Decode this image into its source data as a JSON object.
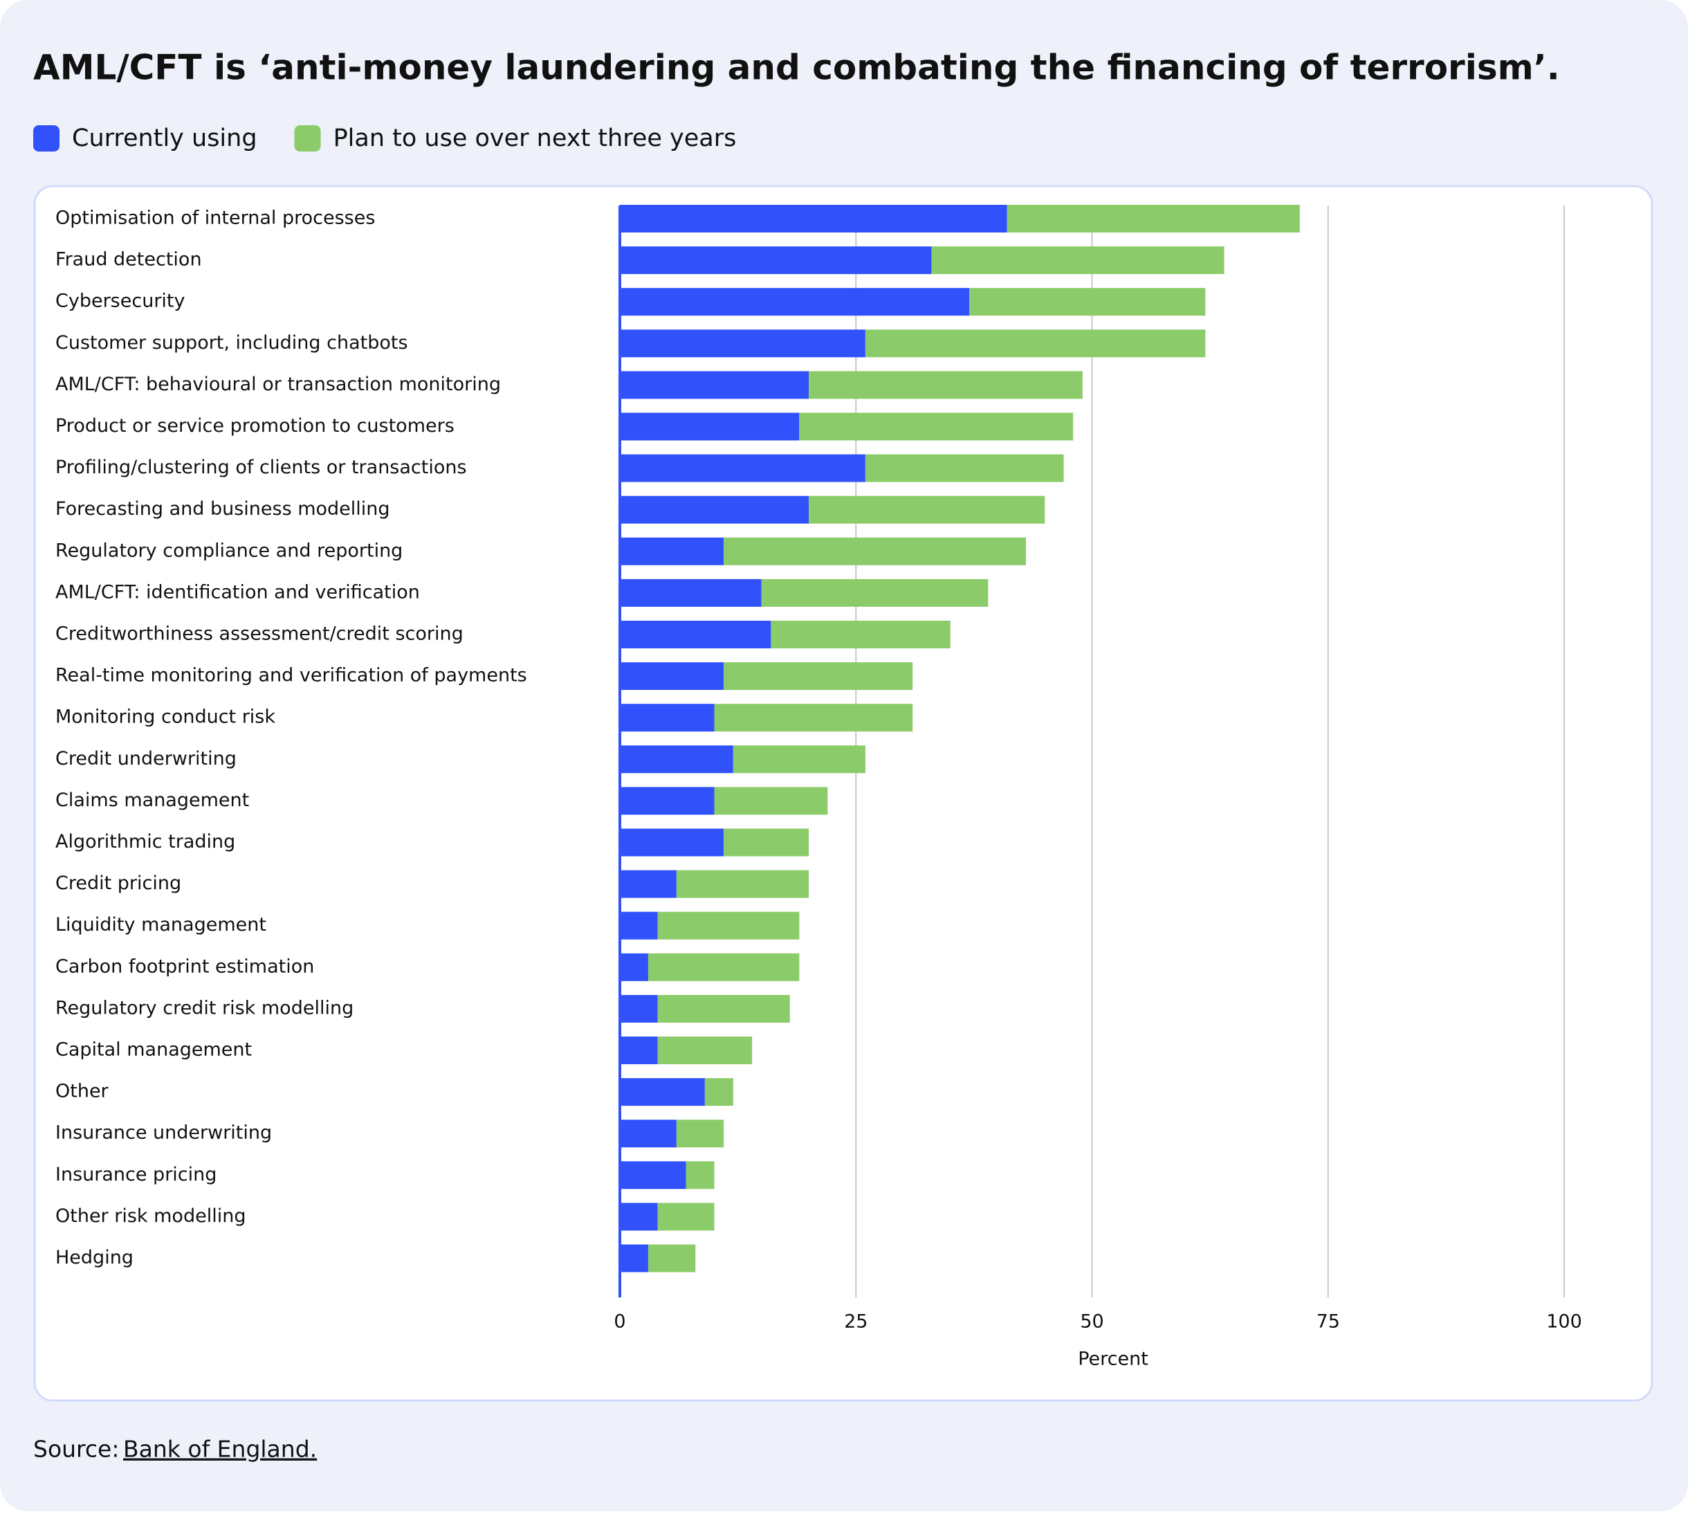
{
  "chart_data": {
    "type": "bar",
    "orientation": "horizontal",
    "stacked": true,
    "title": "AML/CFT is ‘anti-money laundering and combating the financing of terrorism’.",
    "categories": [
      "Optimisation of internal processes",
      "Fraud detection",
      "Cybersecurity",
      "Customer support, including chatbots",
      "AML/CFT: behavioural or transaction monitoring",
      "Product or service promotion to customers",
      "Profiling/clustering of clients or transactions",
      "Forecasting and business modelling",
      "Regulatory compliance and reporting",
      "AML/CFT: identification and verification",
      "Creditworthiness assessment/credit scoring",
      "Real-time monitoring and verification of payments",
      "Monitoring conduct risk",
      "Credit underwriting",
      "Claims management",
      "Algorithmic trading",
      "Credit pricing",
      "Liquidity management",
      "Carbon footprint estimation",
      "Regulatory credit risk modelling",
      "Capital management",
      "Other",
      "Insurance underwriting",
      "Insurance pricing",
      "Other risk modelling",
      "Hedging"
    ],
    "series": [
      {
        "name": "Currently using",
        "color": "#3152fb",
        "values": [
          41,
          33,
          37,
          26,
          20,
          19,
          26,
          20,
          11,
          15,
          16,
          11,
          10,
          12,
          10,
          11,
          6,
          4,
          3,
          4,
          4,
          9,
          6,
          7,
          4,
          3
        ]
      },
      {
        "name": "Plan to use over next three years",
        "color": "#8ccb6a",
        "values": [
          31,
          31,
          25,
          36,
          29,
          29,
          21,
          25,
          32,
          24,
          19,
          20,
          21,
          14,
          12,
          9,
          14,
          15,
          16,
          14,
          10,
          3,
          5,
          3,
          6,
          5
        ]
      }
    ],
    "xlim": [
      0,
      100
    ],
    "xticks": [
      0,
      25,
      50,
      75,
      100
    ],
    "xlabel": "Percent",
    "grid": true,
    "source_label": "Source:",
    "source_link": "Bank of England."
  }
}
